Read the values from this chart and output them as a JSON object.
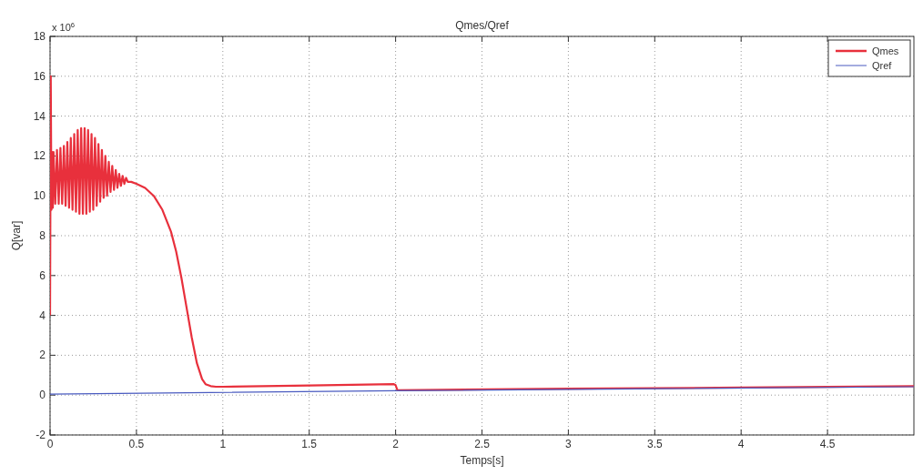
{
  "chart_data": {
    "type": "line",
    "title": "Qmes/Qref",
    "xlabel": "Temps[s]",
    "ylabel": "Q[var]",
    "annotations": [
      "x 10$^{6}$"
    ],
    "xlim": [
      0,
      5
    ],
    "ylim": [
      -2,
      18
    ],
    "xticks": [
      0,
      0.5,
      1,
      1.5,
      2,
      2.5,
      3,
      3.5,
      4,
      4.5
    ],
    "yticks": [
      -2,
      0,
      2,
      4,
      6,
      8,
      10,
      12,
      14,
      16,
      18
    ],
    "grid": true,
    "legend": "top right",
    "line_style": "solid",
    "marker": "none",
    "series": [
      {
        "name": "Qmes",
        "color": "#e8303c",
        "x": [
          0,
          0.004,
          0.008,
          0.012,
          0.016,
          0.02,
          0.03,
          0.04,
          0.05,
          0.06,
          0.07,
          0.08,
          0.09,
          0.1,
          0.11,
          0.12,
          0.13,
          0.14,
          0.15,
          0.16,
          0.17,
          0.18,
          0.19,
          0.2,
          0.21,
          0.22,
          0.23,
          0.24,
          0.25,
          0.26,
          0.27,
          0.28,
          0.29,
          0.3,
          0.31,
          0.32,
          0.33,
          0.34,
          0.35,
          0.36,
          0.37,
          0.38,
          0.39,
          0.4,
          0.41,
          0.42,
          0.43,
          0.44,
          0.45,
          0.47,
          0.5,
          0.55,
          0.6,
          0.65,
          0.7,
          0.73,
          0.76,
          0.79,
          0.82,
          0.85,
          0.88,
          0.9,
          0.93,
          0.96,
          1.0,
          1.5,
          1.99,
          2.0,
          2.01,
          3.0,
          4.0,
          5.0
        ],
        "values": [
          4,
          16,
          9.3,
          12.2,
          9.4,
          12.2,
          9.6,
          12.3,
          9.6,
          12.4,
          9.6,
          12.5,
          9.5,
          12.7,
          9.4,
          12.9,
          9.3,
          13.1,
          9.2,
          13.3,
          9.1,
          13.4,
          9.1,
          13.4,
          9.1,
          13.3,
          9.2,
          13.1,
          9.3,
          12.9,
          9.5,
          12.6,
          9.7,
          12.3,
          9.9,
          12.0,
          10.0,
          11.7,
          10.2,
          11.5,
          10.3,
          11.3,
          10.4,
          11.1,
          10.5,
          11.0,
          10.6,
          10.9,
          10.7,
          10.7,
          10.6,
          10.4,
          10.0,
          9.3,
          8.2,
          7.2,
          5.9,
          4.4,
          2.9,
          1.6,
          0.8,
          0.55,
          0.45,
          0.42,
          0.42,
          0.48,
          0.55,
          0.5,
          0.25,
          0.32,
          0.38,
          0.45
        ]
      },
      {
        "name": "Qref",
        "color": "#4a5bc0",
        "x": [
          0,
          2,
          2.0,
          5
        ],
        "values": [
          0.05,
          0.22,
          0.22,
          0.42
        ]
      }
    ]
  }
}
